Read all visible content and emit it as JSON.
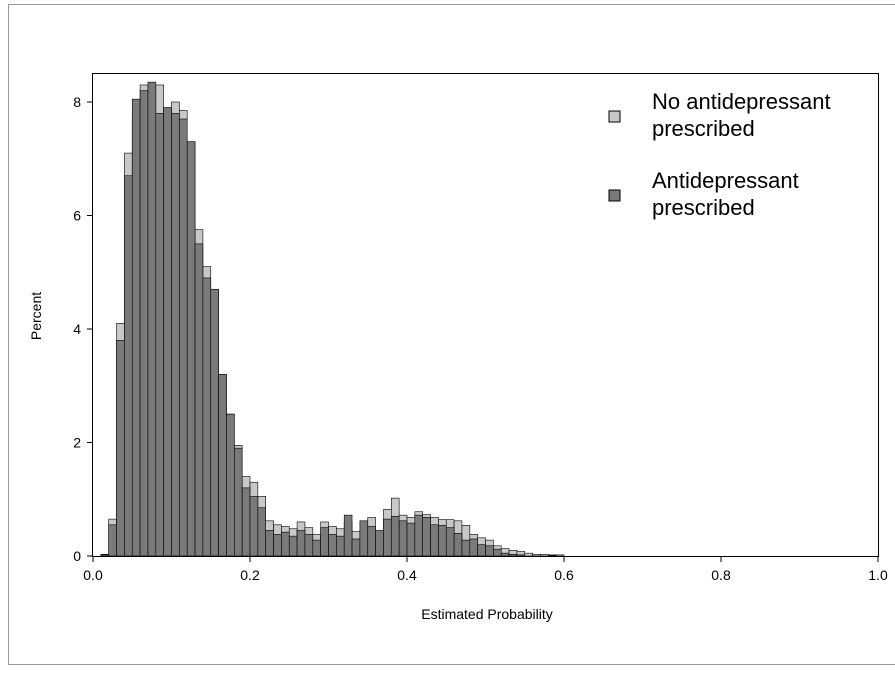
{
  "chart_data": {
    "type": "bar",
    "subtype": "overlaid-histogram",
    "title": "",
    "xlabel": "Estimated Probability",
    "ylabel": "Percent",
    "xlim": [
      0.0,
      1.0
    ],
    "ylim": [
      0,
      8.5
    ],
    "x_ticks": [
      0.0,
      0.2,
      0.4,
      0.6,
      0.8,
      1.0
    ],
    "x_tick_labels": [
      "0.0",
      "0.2",
      "0.4",
      "0.6",
      "0.8",
      "1.0"
    ],
    "y_ticks": [
      0,
      2,
      4,
      6,
      8
    ],
    "y_tick_labels": [
      "0",
      "2",
      "4",
      "6",
      "8"
    ],
    "bin_width": 0.01,
    "bin_start": 0.0,
    "grid": false,
    "legend_position": "top-right",
    "series": [
      {
        "name": "No antidepressant prescribed",
        "color": "#c8c8c8",
        "values": [
          0.0,
          0.03,
          0.65,
          4.1,
          7.1,
          7.75,
          8.3,
          8.2,
          8.3,
          7.9,
          8.0,
          7.85,
          7.3,
          5.75,
          5.1,
          4.7,
          3.2,
          2.5,
          1.95,
          1.4,
          1.3,
          1.05,
          0.62,
          0.55,
          0.52,
          0.48,
          0.6,
          0.5,
          0.38,
          0.6,
          0.52,
          0.48,
          0.6,
          0.43,
          0.45,
          0.68,
          0.42,
          0.82,
          1.02,
          0.72,
          0.68,
          0.78,
          0.73,
          0.68,
          0.64,
          0.64,
          0.62,
          0.54,
          0.38,
          0.32,
          0.28,
          0.18,
          0.13,
          0.1,
          0.08,
          0.05,
          0.03,
          0.03,
          0.02,
          0.02
        ]
      },
      {
        "name": "Antidepressant prescribed",
        "color": "#7a7a7a",
        "values": [
          0.0,
          0.02,
          0.55,
          3.8,
          6.7,
          8.05,
          8.2,
          8.35,
          7.8,
          7.9,
          7.8,
          7.7,
          7.3,
          5.5,
          4.9,
          4.7,
          3.2,
          2.5,
          1.9,
          1.2,
          1.05,
          0.85,
          0.45,
          0.38,
          0.42,
          0.35,
          0.45,
          0.38,
          0.28,
          0.5,
          0.38,
          0.35,
          0.72,
          0.3,
          0.62,
          0.52,
          0.45,
          0.65,
          0.7,
          0.62,
          0.58,
          0.72,
          0.68,
          0.55,
          0.54,
          0.5,
          0.4,
          0.28,
          0.3,
          0.2,
          0.18,
          0.12,
          0.05,
          0.03,
          0.02,
          0.0,
          0.0,
          0.0,
          0.01,
          0.0
        ]
      }
    ],
    "legend": [
      {
        "line1": "No antidepressant",
        "line2": "prescribed",
        "color": "#c8c8c8"
      },
      {
        "line1": "Antidepressant",
        "line2": "prescribed",
        "color": "#7a7a7a"
      }
    ]
  }
}
